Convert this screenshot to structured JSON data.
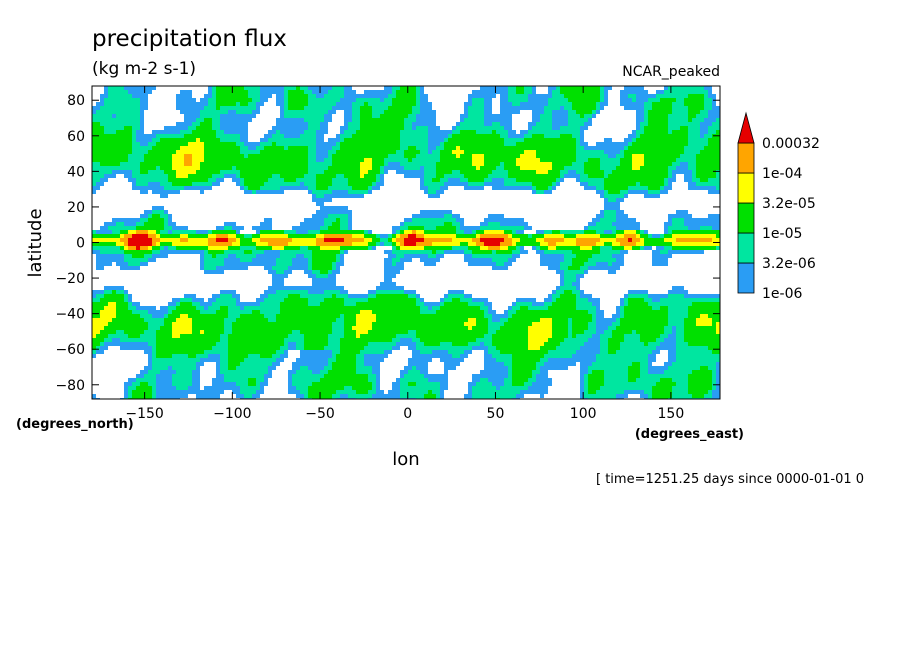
{
  "chart_data": {
    "type": "heatmap",
    "title": "precipitation flux",
    "units": "(kg m-2 s-1)",
    "model": "NCAR_peaked",
    "xlabel": "lon",
    "x_units": "(degrees_east)",
    "ylabel": "latitude",
    "y_units": "(degrees_north)",
    "xlim": [
      -180,
      178
    ],
    "ylim": [
      -88,
      88
    ],
    "x_ticks": [
      -150,
      -100,
      -50,
      0,
      50,
      100,
      150
    ],
    "y_ticks": [
      80,
      60,
      40,
      20,
      0,
      -20,
      -40,
      -60,
      -80
    ],
    "footer": "[ time=1251.25 days since 0000-01-01 0",
    "grid": false,
    "legend_position": "right",
    "color_levels": [
      {
        "label": "1e-06",
        "color": "#2a9df4"
      },
      {
        "label": "3.2e-06",
        "color": "#00e6a0"
      },
      {
        "label": "1e-05",
        "color": "#00e000"
      },
      {
        "label": "3.2e-05",
        "color": "#ffff00"
      },
      {
        "label": "1e-04",
        "color": "#ffa500"
      },
      {
        "label": "0.00032",
        "color": "#e60000"
      }
    ],
    "background_color": "#ffffff"
  }
}
